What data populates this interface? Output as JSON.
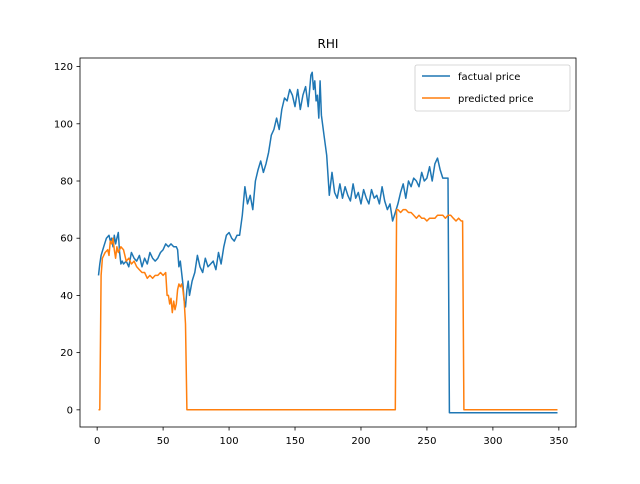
{
  "chart_data": {
    "type": "line",
    "title": "RHI",
    "xlabel": "",
    "ylabel": "",
    "xlim": [
      -13,
      363
    ],
    "ylim": [
      -6,
      123
    ],
    "xticks": [
      0,
      50,
      100,
      150,
      200,
      250,
      300,
      350
    ],
    "yticks": [
      0,
      20,
      40,
      60,
      80,
      100,
      120
    ],
    "grid": false,
    "legend_position": "top-right",
    "series": [
      {
        "name": "factual price",
        "color": "#1f77b4",
        "x": [
          1,
          2,
          3,
          5,
          7,
          9,
          10,
          11,
          12,
          13,
          14,
          15,
          16,
          17,
          18,
          19,
          20,
          22,
          24,
          26,
          28,
          30,
          32,
          34,
          36,
          38,
          40,
          42,
          44,
          46,
          48,
          50,
          52,
          54,
          56,
          58,
          60,
          61,
          62,
          63,
          64,
          65,
          66,
          67,
          68,
          69,
          70,
          72,
          74,
          76,
          78,
          80,
          82,
          84,
          86,
          88,
          90,
          92,
          94,
          96,
          98,
          100,
          102,
          104,
          106,
          108,
          110,
          112,
          114,
          116,
          118,
          120,
          122,
          124,
          126,
          128,
          130,
          132,
          134,
          136,
          138,
          140,
          142,
          144,
          146,
          148,
          150,
          152,
          154,
          156,
          158,
          160,
          162,
          163,
          164,
          165,
          166,
          167,
          168,
          169,
          170,
          172,
          174,
          176,
          178,
          180,
          182,
          184,
          186,
          188,
          190,
          192,
          194,
          196,
          198,
          200,
          202,
          204,
          206,
          208,
          210,
          212,
          214,
          216,
          218,
          220,
          222,
          224,
          226,
          228,
          230,
          232,
          234,
          236,
          238,
          240,
          242,
          244,
          246,
          248,
          250,
          252,
          254,
          256,
          258,
          260,
          262,
          264,
          266,
          267,
          268,
          270,
          280,
          300,
          320,
          349
        ],
        "y": [
          47,
          51,
          54,
          57,
          60,
          61,
          59,
          60,
          57,
          61,
          58,
          60,
          62,
          55,
          51,
          52,
          51,
          52,
          50,
          55,
          53,
          52,
          54,
          50,
          53,
          51,
          55,
          53,
          52,
          53,
          55,
          56,
          58,
          57,
          58,
          57,
          57,
          56,
          50,
          52,
          48,
          44,
          38,
          36,
          42,
          45,
          40,
          45,
          48,
          54,
          50,
          48,
          53,
          50,
          51,
          52,
          49,
          55,
          51,
          57,
          61,
          62,
          60,
          59,
          61,
          61,
          68,
          78,
          72,
          75,
          70,
          80,
          84,
          87,
          83,
          86,
          90,
          96,
          98,
          102,
          98,
          105,
          109,
          108,
          112,
          110,
          106,
          112,
          105,
          110,
          113,
          106,
          117,
          118,
          112,
          115,
          108,
          110,
          102,
          115,
          103,
          96,
          89,
          75,
          83,
          76,
          74,
          79,
          74,
          78,
          75,
          73,
          79,
          74,
          76,
          72,
          77,
          74,
          72,
          77,
          74,
          75,
          72,
          78,
          73,
          70,
          72,
          66,
          69,
          72,
          76,
          79,
          74,
          80,
          78,
          81,
          80,
          78,
          83,
          80,
          81,
          85,
          80,
          86,
          88,
          84,
          81,
          81,
          81,
          -1,
          -1,
          -1,
          -1,
          -1,
          -1,
          -1
        ]
      },
      {
        "name": "predicted price",
        "color": "#ff7f0e",
        "x": [
          1,
          2,
          3,
          4,
          6,
          8,
          9,
          10,
          11,
          12,
          13,
          14,
          15,
          16,
          18,
          20,
          22,
          24,
          26,
          28,
          30,
          32,
          34,
          36,
          38,
          40,
          42,
          44,
          46,
          48,
          50,
          52,
          53,
          54,
          55,
          56,
          57,
          58,
          59,
          60,
          61,
          62,
          63,
          64,
          65,
          66,
          67,
          68,
          70,
          100,
          150,
          200,
          226,
          227,
          228,
          230,
          232,
          234,
          236,
          238,
          240,
          242,
          244,
          246,
          248,
          250,
          252,
          254,
          256,
          258,
          260,
          262,
          264,
          266,
          268,
          270,
          272,
          274,
          276,
          277,
          278,
          280,
          300,
          320,
          349
        ],
        "y": [
          0,
          0,
          47,
          53,
          55,
          56,
          54,
          59,
          58,
          60,
          56,
          53,
          57,
          55,
          57,
          56,
          52,
          53,
          51,
          52,
          50,
          49,
          48,
          48,
          46,
          47,
          46,
          47,
          47,
          48,
          47,
          48,
          40,
          40,
          37,
          39,
          34,
          38,
          35,
          37,
          42,
          44,
          43,
          44,
          42,
          38,
          30,
          0,
          0,
          0,
          0,
          0,
          0,
          70,
          70,
          69,
          70,
          70,
          69,
          69,
          68,
          67,
          68,
          67,
          67,
          66,
          67,
          67,
          67,
          68,
          68,
          68,
          67,
          68,
          68,
          67,
          66,
          67,
          66,
          66,
          0,
          0,
          0,
          0,
          0
        ]
      }
    ]
  }
}
